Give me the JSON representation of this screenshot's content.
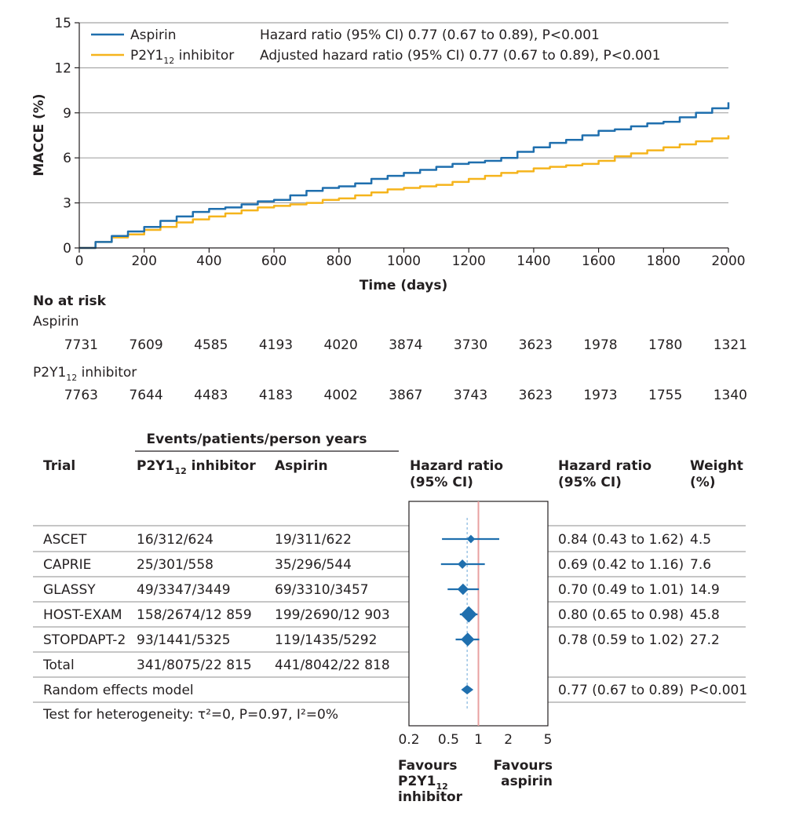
{
  "chart_data": [
    {
      "type": "line",
      "title": "",
      "xlabel": "Time (days)",
      "ylabel": "MACCE (%)",
      "xlim": [
        0,
        2000
      ],
      "ylim": [
        0,
        15
      ],
      "x_ticks": [
        "0",
        "200",
        "400",
        "600",
        "800",
        "1000",
        "1200",
        "1400",
        "1600",
        "1800",
        "2000"
      ],
      "y_ticks": [
        "0",
        "3",
        "6",
        "9",
        "12",
        "15"
      ],
      "grid": "horizontal",
      "legend_position": "top-left",
      "series": [
        {
          "name": "Aspirin",
          "color": "#1f6fae",
          "x": [
            0,
            50,
            100,
            150,
            200,
            250,
            300,
            350,
            400,
            450,
            500,
            550,
            600,
            650,
            700,
            750,
            800,
            850,
            900,
            950,
            1000,
            1050,
            1100,
            1150,
            1200,
            1250,
            1300,
            1350,
            1400,
            1450,
            1500,
            1550,
            1600,
            1650,
            1700,
            1750,
            1800,
            1850,
            1900,
            1950,
            2000
          ],
          "y": [
            0,
            0.4,
            0.8,
            1.1,
            1.4,
            1.8,
            2.1,
            2.4,
            2.6,
            2.7,
            2.9,
            3.1,
            3.2,
            3.5,
            3.8,
            4.0,
            4.1,
            4.3,
            4.6,
            4.8,
            5.0,
            5.2,
            5.4,
            5.6,
            5.7,
            5.8,
            6.0,
            6.4,
            6.7,
            7.0,
            7.2,
            7.5,
            7.8,
            7.9,
            8.1,
            8.3,
            8.4,
            8.7,
            9.0,
            9.3,
            9.7
          ]
        },
        {
          "name": "P2Y12 inhibitor",
          "color": "#f5b41c",
          "x": [
            0,
            50,
            100,
            150,
            200,
            250,
            300,
            350,
            400,
            450,
            500,
            550,
            600,
            650,
            700,
            750,
            800,
            850,
            900,
            950,
            1000,
            1050,
            1100,
            1150,
            1200,
            1250,
            1300,
            1350,
            1400,
            1450,
            1500,
            1550,
            1600,
            1650,
            1700,
            1750,
            1800,
            1850,
            1900,
            1950,
            2000
          ],
          "y": [
            0,
            0.4,
            0.7,
            0.9,
            1.2,
            1.4,
            1.7,
            1.9,
            2.1,
            2.3,
            2.5,
            2.7,
            2.8,
            2.9,
            3.0,
            3.2,
            3.3,
            3.5,
            3.7,
            3.9,
            4.0,
            4.1,
            4.2,
            4.4,
            4.6,
            4.8,
            5.0,
            5.1,
            5.3,
            5.4,
            5.5,
            5.6,
            5.8,
            6.1,
            6.3,
            6.5,
            6.7,
            6.9,
            7.1,
            7.3,
            7.5
          ]
        }
      ],
      "annotations": [
        "Hazard ratio (95% CI) 0.77 (0.67 to 0.89), P<0.001",
        "Adjusted hazard ratio (95% CI) 0.77 (0.67 to 0.89), P<0.001"
      ]
    },
    {
      "type": "table",
      "title": "No at risk",
      "columns_days": [
        0,
        200,
        400,
        600,
        800,
        1000,
        1200,
        1400,
        1600,
        1800,
        2000
      ],
      "rows": [
        {
          "name": "Aspirin",
          "values": [
            "7731",
            "7609",
            "4585",
            "4193",
            "4020",
            "3874",
            "3730",
            "3623",
            "1978",
            "1780",
            "1321"
          ]
        },
        {
          "name": "P2Y12 inhibitor",
          "values": [
            "7763",
            "7644",
            "4483",
            "4183",
            "4002",
            "3867",
            "3743",
            "3623",
            "1973",
            "1755",
            "1340"
          ]
        }
      ]
    },
    {
      "type": "scatter",
      "title": "",
      "x_scale": "log",
      "x_ticks": [
        "0.2",
        "0.5",
        "1",
        "2",
        "5"
      ],
      "xlim": [
        0.2,
        5
      ],
      "ref_line": 1,
      "pooled_line": 0.77,
      "pooled": {
        "hr": 0.77,
        "lo": 0.67,
        "hi": 0.89
      },
      "group_header": "Events/patients/person years",
      "headers": {
        "trial": "Trial",
        "p2y12": "P2Y12 inhibitor",
        "aspirin": "Aspirin",
        "hr_plot": [
          "Hazard ratio",
          "(95% CI)"
        ],
        "hr_text": [
          "Hazard ratio",
          "(95% CI)"
        ],
        "weight": [
          "Weight",
          "(%)"
        ]
      },
      "rows": [
        {
          "trial": "ASCET",
          "p2y12": "16/312/624",
          "aspirin": "19/311/622",
          "hr": 0.84,
          "lo": 0.43,
          "hi": 1.62,
          "hr_text": "0.84 (0.43 to 1.62)",
          "weight": 4.5,
          "weight_text": "4.5"
        },
        {
          "trial": "CAPRIE",
          "p2y12": "25/301/558",
          "aspirin": "35/296/544",
          "hr": 0.69,
          "lo": 0.42,
          "hi": 1.16,
          "hr_text": "0.69 (0.42 to 1.16)",
          "weight": 7.6,
          "weight_text": "7.6"
        },
        {
          "trial": "GLASSY",
          "p2y12": "49/3347/3449",
          "aspirin": "69/3310/3457",
          "hr": 0.7,
          "lo": 0.49,
          "hi": 1.01,
          "hr_text": "0.70 (0.49 to 1.01)",
          "weight": 14.9,
          "weight_text": "14.9"
        },
        {
          "trial": "HOST-EXAM",
          "p2y12": "158/2674/12 859",
          "aspirin": "199/2690/12 903",
          "hr": 0.8,
          "lo": 0.65,
          "hi": 0.98,
          "hr_text": "0.80 (0.65 to 0.98)",
          "weight": 45.8,
          "weight_text": "45.8"
        },
        {
          "trial": "STOPDAPT-2",
          "p2y12": "93/1441/5325",
          "aspirin": "119/1435/5292",
          "hr": 0.78,
          "lo": 0.59,
          "hi": 1.02,
          "hr_text": "0.78 (0.59 to 1.02)",
          "weight": 27.2,
          "weight_text": "27.2"
        }
      ],
      "total": {
        "label": "Total",
        "p2y12": "341/8075/22 815",
        "aspirin": "441/8042/22 818"
      },
      "model": {
        "label": "Random effects model",
        "hr_text": "0.77 (0.67 to 0.89)",
        "p_text": "P<0.001"
      },
      "heterogeneity": "Test for heterogeneity: τ²=0, P=0.97, I²=0%",
      "favours_left": [
        "Favours",
        "P2Y12",
        "inhibitor"
      ],
      "favours_right": [
        "Favours",
        "aspirin"
      ],
      "colors": {
        "marker": "#1f6fae",
        "ref_line": "#e8a0a0"
      }
    }
  ]
}
